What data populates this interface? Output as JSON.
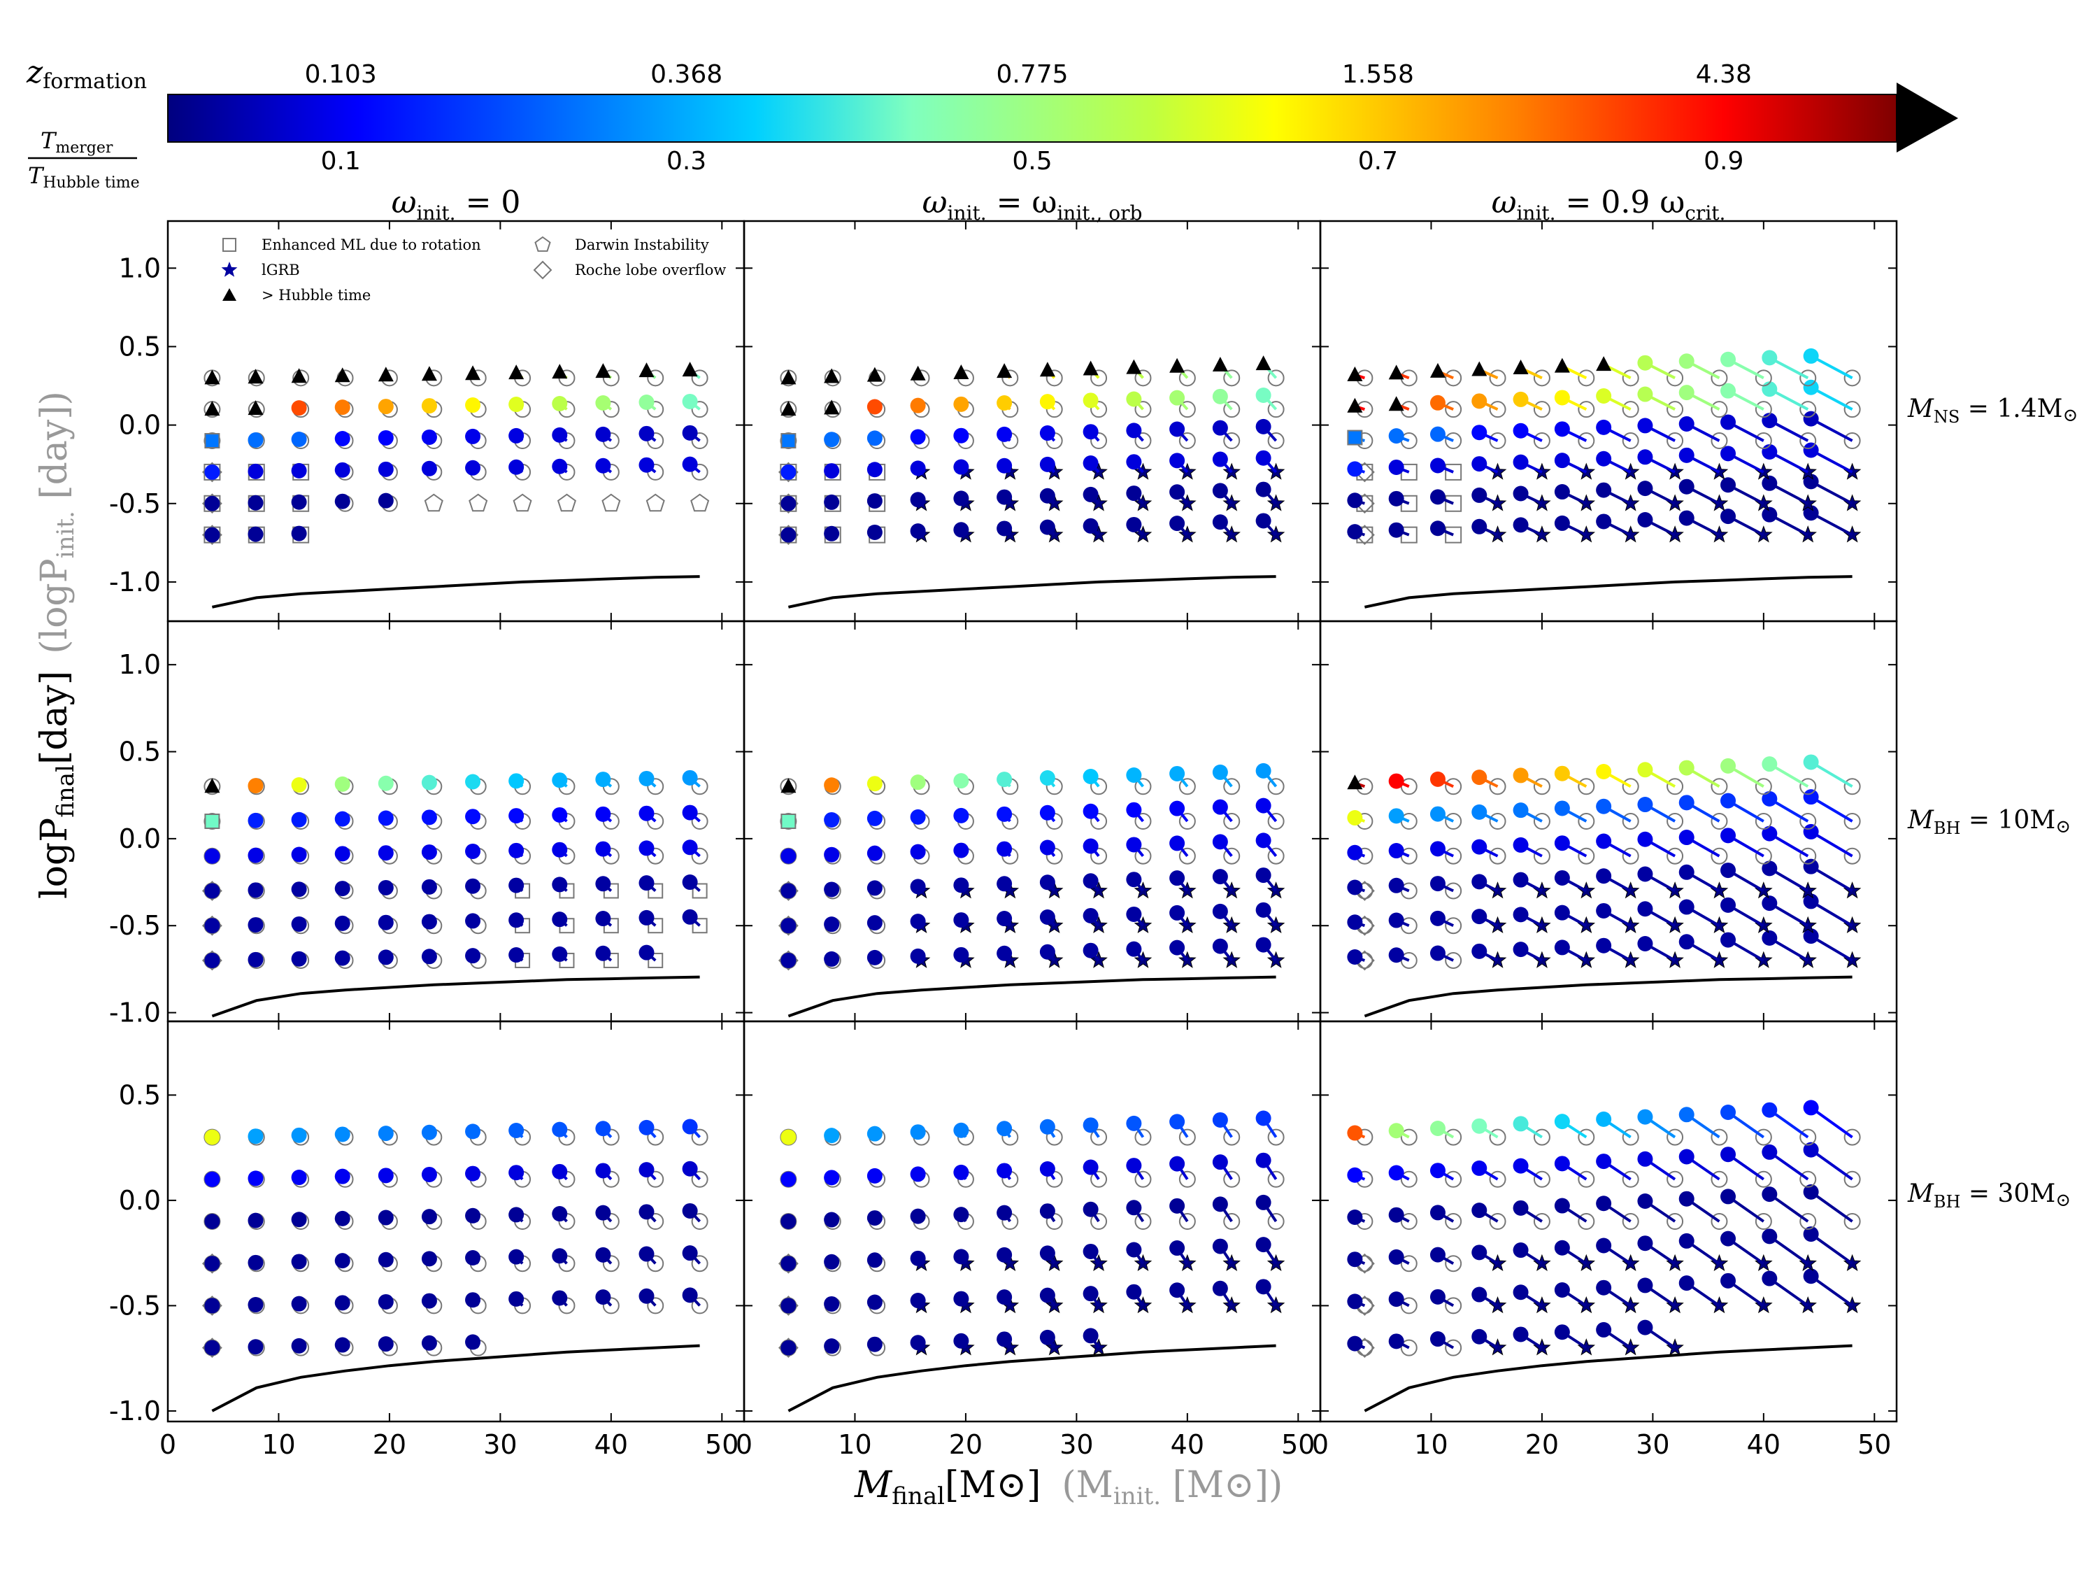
{
  "colorbar": {
    "top_label": "z",
    "top_label_sub": "formation",
    "top_ticks": [
      "0.103",
      "0.368",
      "0.775",
      "1.558",
      "4.38"
    ],
    "bottom_label_num": "T",
    "bottom_label_num_sub": "merger",
    "bottom_label_den": "T",
    "bottom_label_den_sub": "Hubble time",
    "bottom_ticks": [
      "0.1",
      "0.3",
      "0.5",
      "0.7",
      "0.9"
    ],
    "colors": [
      "#00007f",
      "#0000ff",
      "#0080ff",
      "#7fffff",
      "#ffff00",
      "#ff8000",
      "#ff0000",
      "#7f0000"
    ]
  },
  "column_titles": [
    {
      "pre": "ω",
      "sub": "init.",
      "post": " = 0"
    },
    {
      "pre": "ω",
      "sub": "init.",
      "post": " = ω",
      "sub2": "init., orb"
    },
    {
      "pre": "ω",
      "sub": "init.",
      "post": " = 0.9 ω",
      "sub2": "crit."
    }
  ],
  "row_labels": [
    {
      "pre": "M",
      "sub": "NS",
      "post": " = 1.4M",
      "sun": "⊙"
    },
    {
      "pre": "M",
      "sub": "BH",
      "post": " = 10M",
      "sun": "⊙"
    },
    {
      "pre": "M",
      "sub": "BH",
      "post": " = 30M",
      "sun": "⊙"
    }
  ],
  "axes": {
    "xlabel": "M",
    "xlabel_sub": "final",
    "xlabel_unit": "[M",
    "xlabel_unit_sun": "⊙",
    "xlabel_unit_close": "]",
    "xlabel_grey": "(M",
    "xlabel_grey_sub": "init.",
    "xlabel_grey_unit": " [M",
    "xlabel_grey_sun": "⊙",
    "xlabel_grey_close": "])",
    "ylabel": "logP",
    "ylabel_sub": "final",
    "ylabel_unit": "[day]",
    "ylabel_grey": "(logP",
    "ylabel_grey_sub": "init.",
    "ylabel_grey_unit": " [day])"
  },
  "legend": {
    "items": [
      {
        "symbol": "square",
        "label": "Enhanced ML due to rotation"
      },
      {
        "symbol": "star",
        "label": "lGRB"
      },
      {
        "symbol": "triangle",
        "label": "> Hubble time"
      },
      {
        "symbol": "pentagon",
        "label": "Darwin Instability"
      },
      {
        "symbol": "diamond",
        "label": "Roche lobe overflow"
      }
    ]
  },
  "chart_data": [
    {
      "type": "scatter",
      "grid": "3x3 panels",
      "xlim": [
        0,
        52
      ],
      "x_ticks": [
        0,
        10,
        20,
        30,
        40,
        50
      ],
      "rows": [
        {
          "label": "M_NS = 1.4 M_sun",
          "ylim": [
            -1.25,
            1.3
          ],
          "y_ticks": [
            -1.0,
            -0.5,
            0.0,
            0.5,
            1.0
          ]
        },
        {
          "label": "M_BH = 10 M_sun",
          "ylim": [
            -1.05,
            1.25
          ],
          "y_ticks": [
            -1.0,
            -0.5,
            0.0,
            0.5,
            1.0
          ]
        },
        {
          "label": "M_BH = 30 M_sun",
          "ylim": [
            -1.05,
            0.85
          ],
          "y_ticks": [
            -1.0,
            -0.5,
            0.0,
            0.5
          ]
        }
      ],
      "columns": [
        "omega_init = 0",
        "omega_init = omega_init,orb",
        "omega_init = 0.9 omega_crit"
      ],
      "initial_masses": [
        4,
        8,
        12,
        16,
        20,
        24,
        28,
        32,
        36,
        40,
        44,
        48
      ],
      "initial_log_periods": [
        -0.7,
        -0.5,
        -0.3,
        -0.1,
        0.1,
        0.3
      ],
      "roche_limit_curve": {
        "x": [
          4,
          8,
          12,
          16,
          20,
          24,
          28,
          32,
          36,
          40,
          44,
          48
        ],
        "y_row1": [
          -1.16,
          -1.1,
          -1.075,
          -1.06,
          -1.045,
          -1.03,
          -1.015,
          -1.0,
          -0.99,
          -0.98,
          -0.97,
          -0.965
        ],
        "y_row2": [
          -1.02,
          -0.93,
          -0.89,
          -0.87,
          -0.855,
          -0.84,
          -0.83,
          -0.82,
          -0.81,
          -0.805,
          -0.8,
          -0.795
        ],
        "y_row3": [
          -1.0,
          -0.89,
          -0.84,
          -0.81,
          -0.785,
          -0.765,
          -0.75,
          -0.735,
          -0.72,
          -0.71,
          -0.7,
          -0.69
        ]
      }
    }
  ]
}
